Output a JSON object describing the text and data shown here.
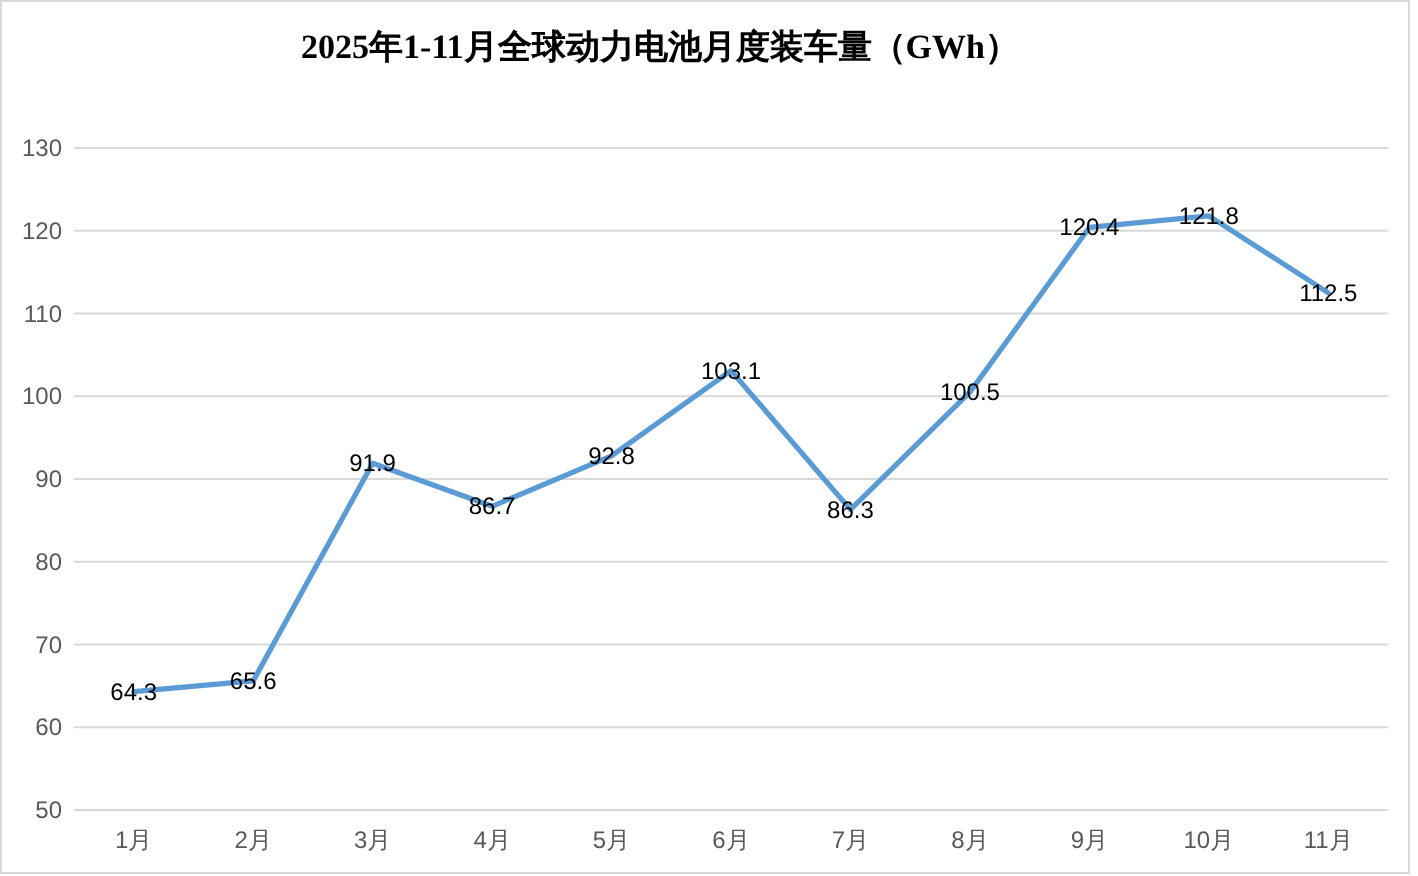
{
  "chart_data": {
    "type": "line",
    "title": "2025年1-11月全球动力电池月度装车量（GWh）",
    "categories": [
      "1月",
      "2月",
      "3月",
      "4月",
      "5月",
      "6月",
      "7月",
      "8月",
      "9月",
      "10月",
      "11月"
    ],
    "series": [
      {
        "color": "#5b9bd5",
        "values": [
          64.3,
          65.6,
          91.9,
          86.7,
          92.8,
          103.1,
          86.3,
          100.5,
          120.4,
          121.8,
          112.5
        ]
      }
    ],
    "ylim": [
      50,
      130
    ],
    "yticks": [
      50,
      60,
      70,
      80,
      90,
      100,
      110,
      120,
      130
    ],
    "grid": "y",
    "data_labels": true,
    "line_style": "solid"
  }
}
